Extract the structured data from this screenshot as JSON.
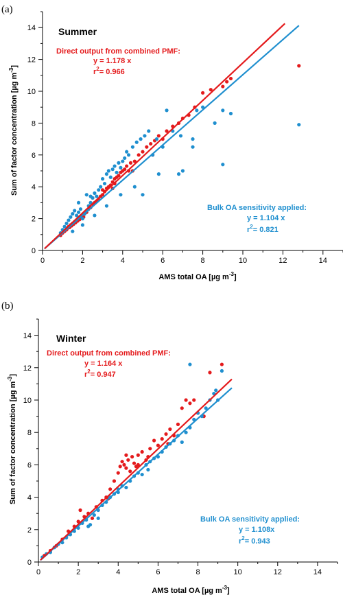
{
  "colors": {
    "direct": "#e41a1c",
    "bulk": "#1f8fcf",
    "axis": "#000000"
  },
  "chart_data": [
    {
      "type": "scatter",
      "panel_label": "(a)",
      "season": "Summer",
      "xlabel": "AMS total OA [µg m",
      "ylabel": "Sum of factor concentration [µg m",
      "unit_exponent": "-3",
      "xlim": [
        0,
        15
      ],
      "ylim": [
        0,
        15
      ],
      "xticks": [
        "0",
        "2",
        "4",
        "6",
        "8",
        "10",
        "12",
        "14"
      ],
      "yticks": [
        "0",
        "2",
        "4",
        "6",
        "8",
        "10",
        "12",
        "14"
      ],
      "grid": false,
      "series": [
        {
          "key": "direct",
          "annotation": {
            "title": "Direct output from combined PMF:",
            "equation": "y = 1.178 x",
            "r2_prefix": "r",
            "r2_value": "= 0.966"
          },
          "slope": 1.178,
          "fit_x": [
            0.1,
            12.1
          ],
          "points": [
            [
              0.9,
              0.95
            ],
            [
              1.0,
              1.1
            ],
            [
              1.1,
              1.2
            ],
            [
              1.2,
              1.3
            ],
            [
              1.25,
              1.4
            ],
            [
              1.3,
              1.5
            ],
            [
              1.35,
              1.45
            ],
            [
              1.4,
              1.6
            ],
            [
              1.45,
              1.55
            ],
            [
              1.5,
              1.7
            ],
            [
              1.55,
              1.65
            ],
            [
              1.6,
              1.8
            ],
            [
              1.65,
              1.75
            ],
            [
              1.7,
              1.9
            ],
            [
              1.75,
              1.85
            ],
            [
              1.8,
              2.0
            ],
            [
              1.85,
              1.95
            ],
            [
              1.9,
              2.1
            ],
            [
              1.95,
              2.05
            ],
            [
              2.0,
              2.2
            ],
            [
              2.05,
              2.1
            ],
            [
              2.1,
              2.3
            ],
            [
              2.2,
              2.4
            ],
            [
              2.3,
              2.6
            ],
            [
              2.4,
              2.7
            ],
            [
              2.5,
              2.9
            ],
            [
              2.6,
              3.0
            ],
            [
              2.7,
              3.1
            ],
            [
              2.8,
              3.2
            ],
            [
              2.9,
              3.4
            ],
            [
              3.0,
              3.5
            ],
            [
              3.1,
              3.7
            ],
            [
              3.2,
              3.9
            ],
            [
              3.3,
              4.0
            ],
            [
              3.4,
              4.1
            ],
            [
              3.5,
              4.3
            ],
            [
              3.6,
              4.5
            ],
            [
              3.7,
              4.6
            ],
            [
              3.8,
              4.7
            ],
            [
              3.9,
              4.9
            ],
            [
              4.0,
              5.0
            ],
            [
              4.1,
              5.1
            ],
            [
              4.2,
              5.3
            ],
            [
              4.3,
              5.0
            ],
            [
              4.4,
              5.5
            ],
            [
              4.6,
              5.6
            ],
            [
              4.8,
              6.0
            ],
            [
              5.0,
              6.2
            ],
            [
              5.2,
              6.5
            ],
            [
              5.4,
              6.7
            ],
            [
              5.6,
              6.9
            ],
            [
              5.8,
              7.2
            ],
            [
              6.0,
              7.0
            ],
            [
              6.2,
              7.5
            ],
            [
              6.5,
              7.8
            ],
            [
              6.8,
              8.0
            ],
            [
              7.0,
              8.3
            ],
            [
              7.3,
              8.5
            ],
            [
              7.6,
              9.0
            ],
            [
              8.0,
              9.9
            ],
            [
              8.4,
              10.1
            ],
            [
              9.0,
              10.3
            ],
            [
              9.2,
              10.6
            ],
            [
              9.4,
              10.8
            ],
            [
              12.8,
              11.6
            ],
            [
              3.5,
              3.9
            ],
            [
              3.6,
              4.2
            ],
            [
              2.5,
              3.3
            ],
            [
              3.0,
              3.8
            ],
            [
              4.5,
              5.0
            ],
            [
              5.5,
              6.0
            ]
          ]
        },
        {
          "key": "bulk",
          "annotation": {
            "title": "Bulk OA sensitivity applied:",
            "equation": "y = 1.104 x",
            "r2_prefix": "r",
            "r2_value": "= 0.821"
          },
          "slope": 1.104,
          "fit_x": [
            0.1,
            12.8
          ],
          "points": [
            [
              0.9,
              1.1
            ],
            [
              1.0,
              1.3
            ],
            [
              1.1,
              1.5
            ],
            [
              1.2,
              1.7
            ],
            [
              1.3,
              1.9
            ],
            [
              1.4,
              2.1
            ],
            [
              1.5,
              2.3
            ],
            [
              1.6,
              2.5
            ],
            [
              1.7,
              2.2
            ],
            [
              1.8,
              2.4
            ],
            [
              1.9,
              2.6
            ],
            [
              2.0,
              2.0
            ],
            [
              2.1,
              2.3
            ],
            [
              2.2,
              2.5
            ],
            [
              2.3,
              2.8
            ],
            [
              2.4,
              3.0
            ],
            [
              2.5,
              3.3
            ],
            [
              2.6,
              3.6
            ],
            [
              2.7,
              3.4
            ],
            [
              2.8,
              3.8
            ],
            [
              2.9,
              4.0
            ],
            [
              3.0,
              4.5
            ],
            [
              3.1,
              4.2
            ],
            [
              3.2,
              4.8
            ],
            [
              3.3,
              5.0
            ],
            [
              3.4,
              4.6
            ],
            [
              3.5,
              5.1
            ],
            [
              3.6,
              5.3
            ],
            [
              3.7,
              4.9
            ],
            [
              3.8,
              5.5
            ],
            [
              3.9,
              5.2
            ],
            [
              4.0,
              5.6
            ],
            [
              4.1,
              5.8
            ],
            [
              4.2,
              6.2
            ],
            [
              4.3,
              6.0
            ],
            [
              4.5,
              6.5
            ],
            [
              4.7,
              6.8
            ],
            [
              4.9,
              7.0
            ],
            [
              5.1,
              7.2
            ],
            [
              5.3,
              7.5
            ],
            [
              5.5,
              6.0
            ],
            [
              5.7,
              7.0
            ],
            [
              6.0,
              6.5
            ],
            [
              6.2,
              8.8
            ],
            [
              6.5,
              7.5
            ],
            [
              6.8,
              4.8
            ],
            [
              7.0,
              5.0
            ],
            [
              7.5,
              7.0
            ],
            [
              7.5,
              6.5
            ],
            [
              7.7,
              8.8
            ],
            [
              8.0,
              9.0
            ],
            [
              8.6,
              8.0
            ],
            [
              9.0,
              5.4
            ],
            [
              9.0,
              8.8
            ],
            [
              9.4,
              8.6
            ],
            [
              12.8,
              7.9
            ],
            [
              5.0,
              3.5
            ],
            [
              4.6,
              4.0
            ],
            [
              3.9,
              3.5
            ],
            [
              3.2,
              2.8
            ],
            [
              2.6,
              2.2
            ],
            [
              2.0,
              1.6
            ],
            [
              1.5,
              1.2
            ],
            [
              2.2,
              3.5
            ],
            [
              2.4,
              3.4
            ],
            [
              1.8,
              3.0
            ],
            [
              5.8,
              4.8
            ],
            [
              6.9,
              7.2
            ]
          ]
        }
      ]
    },
    {
      "type": "scatter",
      "panel_label": "(b)",
      "season": "Winter",
      "xlabel": "AMS total OA [µg m",
      "ylabel": "Sum of factor concentration [µg m",
      "unit_exponent": "-3",
      "xlim": [
        0,
        15
      ],
      "ylim": [
        0,
        15
      ],
      "xticks": [
        "0",
        "2",
        "4",
        "6",
        "8",
        "10",
        "12",
        "14"
      ],
      "yticks": [
        "0",
        "2",
        "4",
        "6",
        "8",
        "10",
        "12",
        "14"
      ],
      "grid": false,
      "series": [
        {
          "key": "direct",
          "annotation": {
            "title": "Direct output from combined PMF:",
            "equation": "y = 1.164 x",
            "r2_prefix": "r",
            "r2_value": "= 0.947"
          },
          "slope": 1.164,
          "fit_x": [
            0.1,
            9.7
          ],
          "points": [
            [
              0.3,
              0.4
            ],
            [
              0.6,
              0.7
            ],
            [
              0.9,
              1.0
            ],
            [
              1.2,
              1.4
            ],
            [
              1.5,
              1.9
            ],
            [
              1.8,
              2.2
            ],
            [
              2.0,
              2.5
            ],
            [
              2.1,
              3.2
            ],
            [
              2.3,
              2.8
            ],
            [
              2.5,
              3.0
            ],
            [
              2.7,
              2.7
            ],
            [
              2.9,
              3.4
            ],
            [
              3.2,
              3.8
            ],
            [
              3.4,
              4.0
            ],
            [
              3.6,
              4.5
            ],
            [
              3.8,
              5.0
            ],
            [
              4.0,
              5.5
            ],
            [
              4.1,
              5.9
            ],
            [
              4.2,
              6.2
            ],
            [
              4.3,
              6.0
            ],
            [
              4.4,
              5.8
            ],
            [
              4.5,
              6.3
            ],
            [
              4.6,
              5.6
            ],
            [
              4.7,
              6.5
            ],
            [
              4.8,
              6.1
            ],
            [
              4.9,
              5.9
            ],
            [
              5.0,
              6.6
            ],
            [
              5.2,
              6.8
            ],
            [
              5.4,
              6.3
            ],
            [
              5.6,
              7.0
            ],
            [
              5.8,
              7.5
            ],
            [
              6.0,
              7.2
            ],
            [
              6.2,
              7.6
            ],
            [
              6.4,
              7.9
            ],
            [
              6.6,
              8.2
            ],
            [
              6.8,
              7.8
            ],
            [
              7.0,
              8.5
            ],
            [
              7.2,
              9.5
            ],
            [
              7.4,
              10.0
            ],
            [
              7.6,
              9.8
            ],
            [
              7.8,
              10.0
            ],
            [
              8.0,
              9.2
            ],
            [
              8.3,
              9.0
            ],
            [
              8.6,
              11.7
            ],
            [
              9.2,
              12.2
            ],
            [
              5.0,
              6.0
            ],
            [
              5.5,
              6.5
            ],
            [
              3.5,
              3.9
            ],
            [
              4.4,
              6.6
            ],
            [
              6.5,
              7.3
            ]
          ]
        },
        {
          "key": "bulk",
          "annotation": {
            "title": "Bulk OA sensitivity applied:",
            "equation": "y = 1.108x",
            "r2_prefix": "r",
            "r2_value": "= 0.943"
          },
          "slope": 1.108,
          "fit_x": [
            0.1,
            9.7
          ],
          "points": [
            [
              0.2,
              0.3
            ],
            [
              0.4,
              0.5
            ],
            [
              0.6,
              0.6
            ],
            [
              0.8,
              0.9
            ],
            [
              1.0,
              1.1
            ],
            [
              1.2,
              1.2
            ],
            [
              1.4,
              1.5
            ],
            [
              1.6,
              1.7
            ],
            [
              1.8,
              1.9
            ],
            [
              2.0,
              2.1
            ],
            [
              2.2,
              2.4
            ],
            [
              2.4,
              2.6
            ],
            [
              2.6,
              2.3
            ],
            [
              2.8,
              2.9
            ],
            [
              3.0,
              3.2
            ],
            [
              3.2,
              3.5
            ],
            [
              3.4,
              3.7
            ],
            [
              3.6,
              4.0
            ],
            [
              3.8,
              4.2
            ],
            [
              4.0,
              4.5
            ],
            [
              4.2,
              4.7
            ],
            [
              4.4,
              4.6
            ],
            [
              4.6,
              5.0
            ],
            [
              4.8,
              5.3
            ],
            [
              5.0,
              5.5
            ],
            [
              5.2,
              5.4
            ],
            [
              5.4,
              6.0
            ],
            [
              5.6,
              6.2
            ],
            [
              5.8,
              6.4
            ],
            [
              6.0,
              6.5
            ],
            [
              6.2,
              6.8
            ],
            [
              6.4,
              7.1
            ],
            [
              6.6,
              7.3
            ],
            [
              6.8,
              7.5
            ],
            [
              7.0,
              7.8
            ],
            [
              7.2,
              7.4
            ],
            [
              7.4,
              8.0
            ],
            [
              7.6,
              8.3
            ],
            [
              7.8,
              8.8
            ],
            [
              8.0,
              9.2
            ],
            [
              8.2,
              9.0
            ],
            [
              8.4,
              9.5
            ],
            [
              8.6,
              10.0
            ],
            [
              8.8,
              10.4
            ],
            [
              9.0,
              10.0
            ],
            [
              9.2,
              11.8
            ],
            [
              7.6,
              12.2
            ],
            [
              8.9,
              10.6
            ],
            [
              4.0,
              4.3
            ],
            [
              3.0,
              2.7
            ],
            [
              2.5,
              2.2
            ],
            [
              5.5,
              5.7
            ]
          ]
        }
      ]
    }
  ]
}
